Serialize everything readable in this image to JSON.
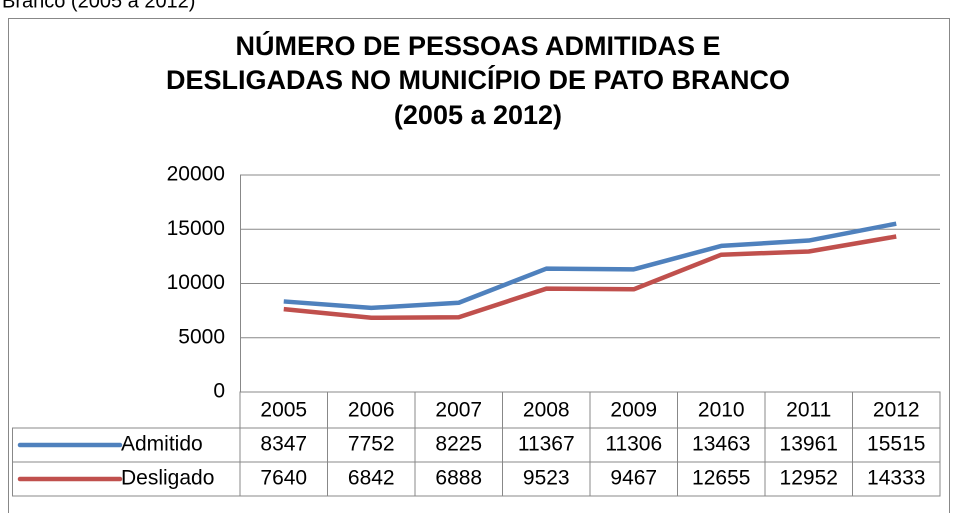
{
  "caption": "Branco (2005 a 2012)",
  "chart_data": {
    "type": "line",
    "title": [
      "NÚMERO DE PESSOAS ADMITIDAS E",
      "DESLIGADAS NO MUNICÍPIO DE PATO BRANCO",
      "(2005 a 2012)"
    ],
    "categories": [
      "2005",
      "2006",
      "2007",
      "2008",
      "2009",
      "2010",
      "2011",
      "2012"
    ],
    "series": [
      {
        "name": "Admitido",
        "color": "#4f81bd",
        "values": [
          8347,
          7752,
          8225,
          11367,
          11306,
          13463,
          13961,
          15515
        ]
      },
      {
        "name": "Desligado",
        "color": "#c0504d",
        "values": [
          7640,
          6842,
          6888,
          9523,
          9467,
          12655,
          12952,
          14333
        ]
      }
    ],
    "ylim": [
      0,
      20000
    ],
    "yticks": [
      0,
      5000,
      10000,
      15000,
      20000
    ],
    "grid": true,
    "data_table": true
  }
}
